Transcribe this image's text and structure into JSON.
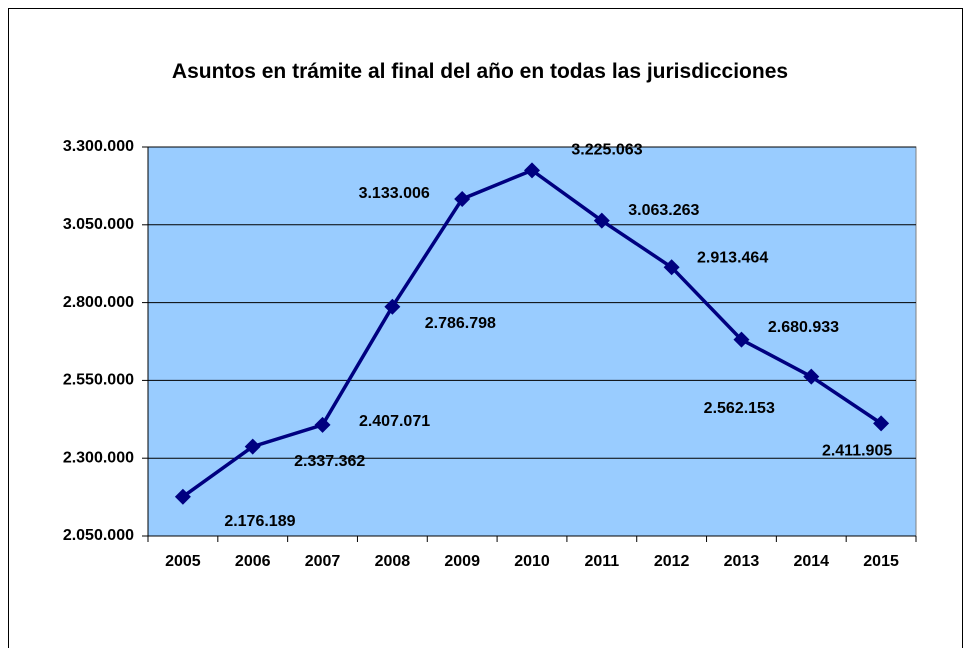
{
  "chart_data": {
    "type": "line",
    "title": "Asuntos en trámite al final del año en todas las jurisdicciones",
    "categories": [
      "2005",
      "2006",
      "2007",
      "2008",
      "2009",
      "2010",
      "2011",
      "2012",
      "2013",
      "2014",
      "2015"
    ],
    "series": [
      {
        "color": "#000080",
        "values": [
          2176189,
          2337362,
          2407071,
          2786798,
          3133006,
          3225063,
          3063263,
          2913464,
          2680933,
          2562153,
          2411905
        ],
        "value_labels": [
          "2.176.189",
          "2.337.362",
          "2.407.071",
          "2.786.798",
          "3.133.006",
          "3.225.063",
          "3.063.263",
          "2.913.464",
          "2.680.933",
          "2.562.153",
          "2.411.905"
        ]
      }
    ],
    "ylim": [
      2050000,
      3300000
    ],
    "yticks": [
      {
        "value": 2050000,
        "label": "2.050.000"
      },
      {
        "value": 2300000,
        "label": "2.300.000"
      },
      {
        "value": 2550000,
        "label": "2.550.000"
      },
      {
        "value": 2800000,
        "label": "2.800.000"
      },
      {
        "value": 3050000,
        "label": "3.050.000"
      },
      {
        "value": 3300000,
        "label": "3.300.000"
      }
    ],
    "grid": true,
    "plot_background": "#99ccff"
  }
}
